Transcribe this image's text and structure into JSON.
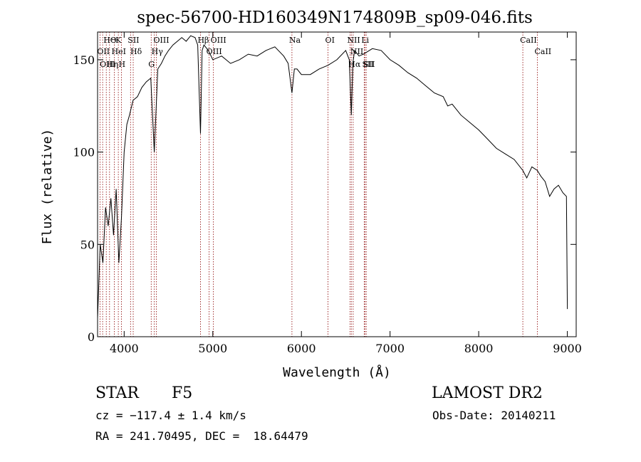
{
  "chart_data": {
    "type": "line",
    "title": "spec-56700-HD160349N174809B_sp09-046.fits",
    "xlabel": "Wavelength (Å)",
    "ylabel": "Flux (relative)",
    "xlim": [
      3700,
      9100
    ],
    "ylim": [
      0,
      165
    ],
    "xticks": [
      4000,
      5000,
      6000,
      7000,
      8000,
      9000
    ],
    "yticks": [
      0,
      50,
      100,
      150
    ],
    "grid": false,
    "line_color": "#000000",
    "marker_color": "#8b0000",
    "series": [
      {
        "x": [
          3700,
          3730,
          3760,
          3790,
          3820,
          3850,
          3880,
          3910,
          3940,
          3970,
          4000,
          4030,
          4060,
          4100,
          4150,
          4200,
          4250,
          4300,
          4340,
          4380,
          4420,
          4460,
          4500,
          4550,
          4600,
          4650,
          4700,
          4750,
          4800,
          4830,
          4861,
          4880,
          4900,
          4950,
          5000,
          5100,
          5200,
          5300,
          5400,
          5500,
          5600,
          5700,
          5800,
          5850,
          5893,
          5920,
          5950,
          6000,
          6100,
          6200,
          6300,
          6400,
          6500,
          6540,
          6563,
          6580,
          6600,
          6650,
          6700,
          6800,
          6900,
          7000,
          7100,
          7200,
          7300,
          7400,
          7500,
          7600,
          7650,
          7700,
          7800,
          7900,
          8000,
          8100,
          8200,
          8300,
          8400,
          8498,
          8542,
          8600,
          8662,
          8700,
          8750,
          8800,
          8850,
          8900,
          8950,
          8990,
          9000
        ],
        "y": [
          10,
          50,
          40,
          70,
          60,
          75,
          55,
          80,
          40,
          65,
          100,
          115,
          120,
          128,
          130,
          135,
          138,
          140,
          100,
          145,
          148,
          152,
          155,
          158,
          160,
          162,
          160,
          163,
          162,
          158,
          110,
          155,
          158,
          155,
          150,
          152,
          148,
          150,
          153,
          152,
          155,
          157,
          152,
          148,
          132,
          145,
          145,
          142,
          142,
          145,
          147,
          150,
          155,
          150,
          120,
          148,
          155,
          152,
          153,
          156,
          155,
          150,
          147,
          143,
          140,
          136,
          132,
          130,
          125,
          126,
          120,
          116,
          112,
          107,
          102,
          99,
          96,
          90,
          86,
          92,
          90,
          87,
          84,
          76,
          80,
          82,
          78,
          76,
          15
        ]
      }
    ],
    "lines": [
      {
        "name": "HΘ",
        "x": 3798
      },
      {
        "name": "OII",
        "x": 3727
      },
      {
        "name": "OIII",
        "x": 3757
      },
      {
        "name": "Hη",
        "x": 3835
      },
      {
        "name": "K",
        "x": 3934
      },
      {
        "name": "HeI",
        "x": 3889
      },
      {
        "name": "H",
        "x": 3969
      },
      {
        "name": "SII",
        "x": 4072
      },
      {
        "name": "Hδ",
        "x": 4102
      },
      {
        "name": "OIII",
        "x": 4363
      },
      {
        "name": "Hγ",
        "x": 4340
      },
      {
        "name": "G",
        "x": 4305
      },
      {
        "name": "Hβ",
        "x": 4861
      },
      {
        "name": "OIII",
        "x": 4959
      },
      {
        "name": "OIII",
        "x": 5007
      },
      {
        "name": "Na",
        "x": 5893
      },
      {
        "name": "OI",
        "x": 6300
      },
      {
        "name": "NII",
        "x": 6548
      },
      {
        "name": "NII",
        "x": 6584
      },
      {
        "name": "Hα",
        "x": 6563
      },
      {
        "name": "Li",
        "x": 6708
      },
      {
        "name": "SII",
        "x": 6717
      },
      {
        "name": "SII",
        "x": 6731
      },
      {
        "name": "CaII",
        "x": 8498
      },
      {
        "name": "CaII",
        "x": 8662
      }
    ]
  },
  "info": {
    "object_type": "STAR",
    "subclass": "F5",
    "survey": "LAMOST DR2",
    "cz": "cz = −117.4 ± 1.4 km/s",
    "obs_date": "Obs-Date: 20140211",
    "coords": "RA = 241.70495, DEC =  18.64479"
  }
}
